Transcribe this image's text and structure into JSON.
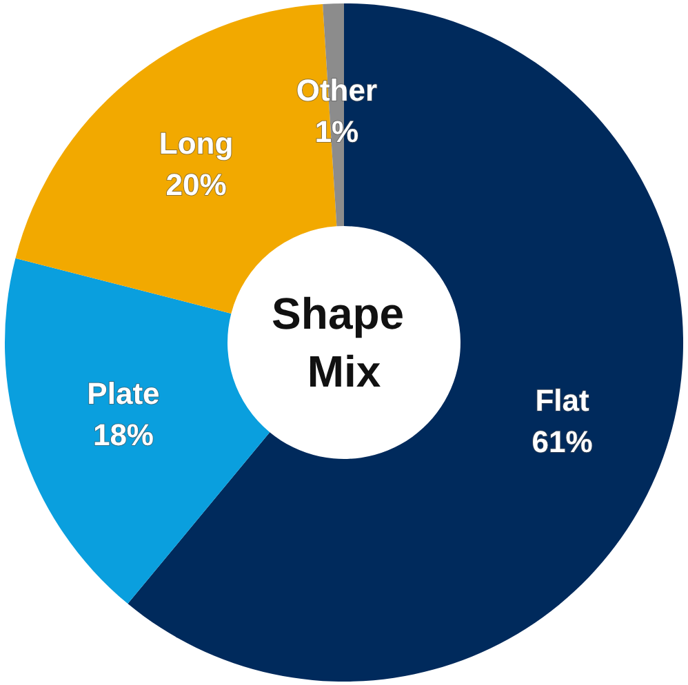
{
  "chart_data": {
    "type": "donut",
    "title": "Shape Mix",
    "categories": [
      "Flat",
      "Plate",
      "Long",
      "Other"
    ],
    "values": [
      61,
      18,
      20,
      1
    ],
    "colors": [
      "#002a5c",
      "#0a9fde",
      "#f2a900",
      "#8c8c8c"
    ],
    "value_labels": [
      "61%",
      "18%",
      "20%",
      "1%"
    ]
  }
}
